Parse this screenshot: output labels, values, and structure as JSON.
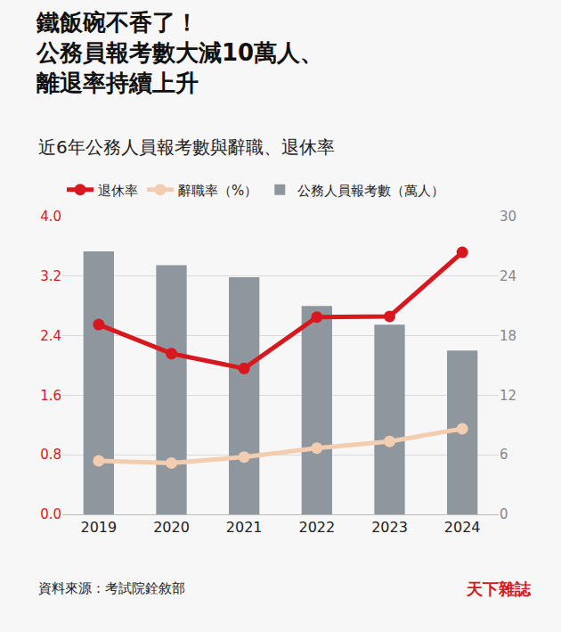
{
  "chart_data": {
    "type": "bar",
    "title": "鐵飯碗不香了！\n公務員報考數大減10萬人、\n離退率持續上升",
    "subtitle": "近6年公務人員報考數與辭職、退休率",
    "source": "資料來源：考試院銓敘部",
    "brand": "天下雜誌",
    "categories": [
      "2019",
      "2020",
      "2021",
      "2022",
      "2023",
      "2024"
    ],
    "series": [
      {
        "name": "退休率",
        "type": "line",
        "color": "#d7191f",
        "marker": "circle",
        "line_style": "solid",
        "values": [
          2.55,
          2.16,
          1.96,
          2.65,
          2.66,
          3.52
        ]
      },
      {
        "name": "辭職率（%）",
        "type": "line",
        "color": "#f2cdb0",
        "marker": "circle",
        "line_style": "solid",
        "values": [
          0.72,
          0.69,
          0.77,
          0.89,
          0.98,
          1.15
        ]
      },
      {
        "name": "公務人員報考數（萬人）",
        "type": "bar",
        "axis": "y2",
        "color": "#8e969e",
        "values": [
          26.5,
          25.1,
          23.9,
          21.0,
          19.1,
          16.5
        ]
      }
    ],
    "ylim": [
      0,
      4
    ],
    "yticks": [
      {
        "value": 0,
        "label": "0.0"
      },
      0.8,
      1.6,
      2.4,
      3.2,
      {
        "value": 4,
        "label": "4.0"
      }
    ],
    "y2lim": [
      0,
      30
    ],
    "y2ticks": [
      0,
      6,
      12,
      18,
      24,
      30
    ],
    "grid": true,
    "legend": "top"
  }
}
